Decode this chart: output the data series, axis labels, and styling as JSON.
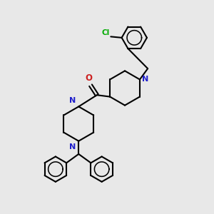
{
  "bg_color": "#e8e8e8",
  "bond_color": "#000000",
  "N_color": "#2020cc",
  "O_color": "#cc2020",
  "Cl_color": "#00aa00",
  "line_width": 1.5,
  "figsize": [
    3.0,
    3.0
  ],
  "dpi": 100,
  "xlim": [
    0,
    10
  ],
  "ylim": [
    0,
    10
  ]
}
